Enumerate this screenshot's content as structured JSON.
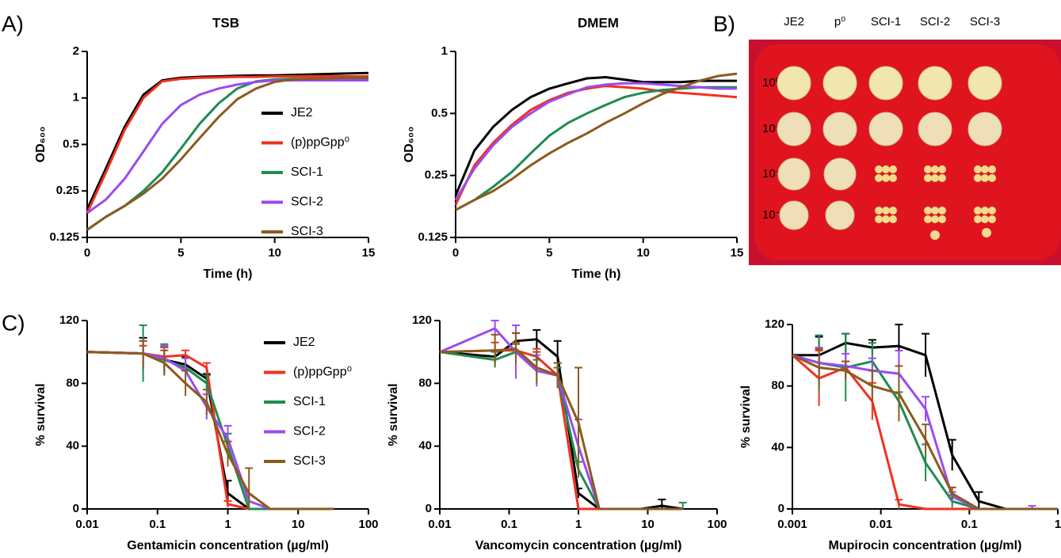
{
  "panel_labels": [
    "A)",
    "B)",
    "C)"
  ],
  "plate": {
    "columns": [
      "JE2",
      "p⁰",
      "SCI-1",
      "SCI-2",
      "SCI-3"
    ],
    "rows": [
      "10⁰",
      "10⁻¹",
      "10⁻²",
      "10⁻³"
    ]
  },
  "chart_data": [
    {
      "type": "line",
      "title": "TSB",
      "x_label": "Time (h)",
      "y_label": "OD₆₀₀",
      "logy": true,
      "legend": "right",
      "x": [
        0,
        1,
        2,
        3,
        4,
        5,
        6,
        7,
        8,
        9,
        10,
        11,
        12,
        13,
        14,
        15
      ],
      "xlim": [
        0,
        15
      ],
      "xticks": [
        0,
        5,
        10,
        15
      ],
      "ylim": [
        0.125,
        2
      ],
      "yticks": [
        0.125,
        0.25,
        0.5,
        1,
        2
      ],
      "series": [
        {
          "name": "JE2",
          "color": "#000000",
          "values": [
            0.19,
            0.35,
            0.65,
            1.05,
            1.3,
            1.35,
            1.37,
            1.38,
            1.39,
            1.4,
            1.4,
            1.41,
            1.42,
            1.43,
            1.44,
            1.45
          ]
        },
        {
          "name": "(p)ppGpp⁰",
          "color": "#f0321e",
          "values": [
            0.18,
            0.33,
            0.62,
            1.0,
            1.28,
            1.33,
            1.35,
            1.36,
            1.37,
            1.37,
            1.38,
            1.38,
            1.38,
            1.38,
            1.38,
            1.38
          ]
        },
        {
          "name": "SCI-1",
          "color": "#1e8c50",
          "values": [
            0.14,
            0.17,
            0.2,
            0.25,
            0.33,
            0.47,
            0.68,
            0.92,
            1.15,
            1.28,
            1.32,
            1.33,
            1.33,
            1.33,
            1.33,
            1.33
          ]
        },
        {
          "name": "SCI-2",
          "color": "#9b4bf0",
          "values": [
            0.18,
            0.22,
            0.3,
            0.45,
            0.68,
            0.9,
            1.05,
            1.15,
            1.22,
            1.27,
            1.3,
            1.3,
            1.3,
            1.3,
            1.3,
            1.3
          ]
        },
        {
          "name": "SCI-3",
          "color": "#8c5a1e",
          "values": [
            0.14,
            0.17,
            0.2,
            0.24,
            0.3,
            0.4,
            0.55,
            0.75,
            0.98,
            1.15,
            1.27,
            1.32,
            1.33,
            1.34,
            1.35,
            1.35
          ]
        }
      ]
    },
    {
      "type": "line",
      "title": "DMEM",
      "x_label": "Time (h)",
      "y_label": "OD₆₀₀",
      "logy": true,
      "x": [
        0,
        1,
        2,
        3,
        4,
        5,
        6,
        7,
        8,
        9,
        10,
        11,
        12,
        13,
        14,
        15
      ],
      "xlim": [
        0,
        15
      ],
      "xticks": [
        0,
        5,
        10,
        15
      ],
      "ylim": [
        0.125,
        1
      ],
      "yticks": [
        0.125,
        0.25,
        0.5,
        1
      ],
      "series": [
        {
          "name": "JE2",
          "color": "#000000",
          "values": [
            0.2,
            0.33,
            0.43,
            0.52,
            0.6,
            0.66,
            0.7,
            0.74,
            0.75,
            0.73,
            0.71,
            0.71,
            0.71,
            0.72,
            0.72,
            0.72
          ]
        },
        {
          "name": "(p)ppGpp⁰",
          "color": "#f0321e",
          "values": [
            0.18,
            0.28,
            0.36,
            0.44,
            0.52,
            0.58,
            0.63,
            0.66,
            0.68,
            0.67,
            0.66,
            0.64,
            0.63,
            0.62,
            0.61,
            0.6
          ]
        },
        {
          "name": "SCI-1",
          "color": "#1e8c50",
          "values": [
            0.17,
            0.19,
            0.22,
            0.26,
            0.32,
            0.39,
            0.45,
            0.5,
            0.55,
            0.6,
            0.63,
            0.65,
            0.66,
            0.67,
            0.67,
            0.67
          ]
        },
        {
          "name": "SCI-2",
          "color": "#9b4bf0",
          "values": [
            0.19,
            0.27,
            0.35,
            0.43,
            0.5,
            0.57,
            0.62,
            0.67,
            0.69,
            0.7,
            0.7,
            0.69,
            0.68,
            0.67,
            0.66,
            0.66
          ]
        },
        {
          "name": "SCI-3",
          "color": "#8c5a1e",
          "values": [
            0.17,
            0.19,
            0.21,
            0.24,
            0.28,
            0.32,
            0.36,
            0.4,
            0.45,
            0.5,
            0.56,
            0.62,
            0.67,
            0.72,
            0.76,
            0.78
          ]
        }
      ]
    },
    {
      "type": "line",
      "x_label": "Gentamicin concentration (µg/ml)",
      "y_label": "% survival",
      "logx": true,
      "legend": "right",
      "x": [
        0.01,
        0.0625,
        0.125,
        0.25,
        0.5,
        1,
        2,
        4,
        8,
        16,
        32
      ],
      "xlim": [
        0.01,
        100
      ],
      "xticks": [
        0.01,
        0.1,
        1,
        10,
        100
      ],
      "ylim": [
        0,
        120
      ],
      "yticks": [
        0,
        40,
        80,
        120
      ],
      "series": [
        {
          "name": "JE2",
          "color": "#000000",
          "values": [
            100,
            99,
            95,
            92,
            83,
            10,
            0,
            0,
            0,
            0,
            0
          ],
          "errors": [
            0,
            10,
            8,
            5,
            3,
            8,
            0,
            0,
            0,
            0,
            0
          ]
        },
        {
          "name": "(p)ppGpp⁰",
          "color": "#f0321e",
          "values": [
            100,
            99,
            97,
            98,
            90,
            3,
            0,
            0,
            0,
            0,
            0
          ],
          "errors": [
            0,
            5,
            6,
            3,
            3,
            2,
            0,
            0,
            0,
            0,
            0
          ]
        },
        {
          "name": "SCI-1",
          "color": "#1e8c50",
          "values": [
            100,
            99,
            95,
            90,
            80,
            40,
            0,
            0,
            0,
            0,
            0
          ],
          "errors": [
            0,
            18,
            10,
            6,
            5,
            8,
            0,
            0,
            0,
            0,
            0
          ]
        },
        {
          "name": "SCI-2",
          "color": "#9b4bf0",
          "values": [
            100,
            99,
            96,
            88,
            65,
            45,
            5,
            0,
            0,
            0,
            0
          ],
          "errors": [
            0,
            8,
            8,
            8,
            8,
            8,
            4,
            0,
            0,
            0,
            0
          ]
        },
        {
          "name": "SCI-3",
          "color": "#8c5a1e",
          "values": [
            100,
            99,
            93,
            80,
            68,
            35,
            10,
            0,
            0,
            0,
            0
          ],
          "errors": [
            0,
            8,
            8,
            8,
            8,
            8,
            16,
            0,
            0,
            0,
            0
          ]
        }
      ]
    },
    {
      "type": "line",
      "x_label": "Vancomycin concentration (µg/ml)",
      "y_label": "% survival",
      "logx": true,
      "x": [
        0.01,
        0.0625,
        0.125,
        0.25,
        0.5,
        1,
        2,
        4,
        8,
        16,
        32
      ],
      "xlim": [
        0.01,
        100
      ],
      "xticks": [
        0.01,
        0.1,
        1,
        10,
        100
      ],
      "ylim": [
        0,
        120
      ],
      "yticks": [
        0,
        40,
        80,
        120
      ],
      "series": [
        {
          "name": "JE2",
          "color": "#000000",
          "values": [
            100,
            97,
            107,
            108,
            97,
            10,
            0,
            0,
            0,
            2,
            0
          ],
          "errors": [
            0,
            4,
            5,
            6,
            10,
            3,
            0,
            0,
            0,
            4,
            0
          ]
        },
        {
          "name": "(p)ppGpp⁰",
          "color": "#f0321e",
          "values": [
            100,
            101,
            101,
            97,
            85,
            0,
            0,
            0,
            0,
            0,
            0
          ],
          "errors": [
            0,
            5,
            5,
            5,
            5,
            0,
            0,
            0,
            0,
            0,
            0
          ]
        },
        {
          "name": "SCI-1",
          "color": "#1e8c50",
          "values": [
            100,
            95,
            100,
            90,
            85,
            25,
            0,
            0,
            0,
            0,
            0
          ],
          "errors": [
            0,
            5,
            5,
            5,
            5,
            5,
            0,
            0,
            0,
            0,
            4
          ]
        },
        {
          "name": "SCI-2",
          "color": "#9b4bf0",
          "values": [
            100,
            115,
            100,
            88,
            85,
            40,
            0,
            0,
            0,
            0,
            0
          ],
          "errors": [
            0,
            5,
            17,
            10,
            8,
            17,
            0,
            0,
            0,
            0,
            0
          ]
        },
        {
          "name": "SCI-3",
          "color": "#8c5a1e",
          "values": [
            100,
            101,
            102,
            90,
            85,
            55,
            0,
            0,
            0,
            0,
            0
          ],
          "errors": [
            0,
            10,
            10,
            10,
            8,
            35,
            0,
            0,
            0,
            0,
            0
          ]
        }
      ]
    },
    {
      "type": "line",
      "x_label": "Mupirocin concentration (µg/ml)",
      "y_label": "% survival",
      "logx": true,
      "x": [
        0.001,
        0.002,
        0.004,
        0.008,
        0.016,
        0.032,
        0.064,
        0.128,
        0.256,
        0.512,
        1
      ],
      "xlim": [
        0.001,
        1
      ],
      "xticks": [
        0.001,
        0.01,
        0.1,
        1
      ],
      "ylim": [
        0,
        120
      ],
      "yticks": [
        0,
        40,
        80,
        120
      ],
      "series": [
        {
          "name": "JE2",
          "color": "#000000",
          "values": [
            100,
            100,
            108,
            105,
            106,
            100,
            35,
            5,
            0,
            0,
            0
          ],
          "errors": [
            0,
            12,
            6,
            5,
            14,
            14,
            10,
            6,
            0,
            0,
            0
          ]
        },
        {
          "name": "(p)ppGpp⁰",
          "color": "#f0321e",
          "values": [
            100,
            85,
            92,
            70,
            3,
            0,
            0,
            0,
            0,
            0,
            0
          ],
          "errors": [
            0,
            18,
            4,
            12,
            3,
            0,
            0,
            0,
            0,
            0,
            0
          ]
        },
        {
          "name": "SCI-1",
          "color": "#1e8c50",
          "values": [
            100,
            95,
            92,
            96,
            70,
            30,
            5,
            0,
            0,
            0,
            0
          ],
          "errors": [
            0,
            18,
            22,
            12,
            6,
            12,
            4,
            0,
            0,
            0,
            0
          ]
        },
        {
          "name": "SCI-2",
          "color": "#9b4bf0",
          "values": [
            100,
            95,
            93,
            90,
            88,
            65,
            8,
            0,
            0,
            0,
            0
          ],
          "errors": [
            0,
            10,
            8,
            8,
            15,
            8,
            3,
            0,
            0,
            2,
            0
          ]
        },
        {
          "name": "SCI-3",
          "color": "#8c5a1e",
          "values": [
            100,
            92,
            90,
            80,
            75,
            45,
            10,
            0,
            0,
            0,
            0
          ],
          "errors": [
            0,
            12,
            6,
            10,
            18,
            10,
            4,
            0,
            0,
            0,
            0
          ]
        }
      ]
    }
  ]
}
